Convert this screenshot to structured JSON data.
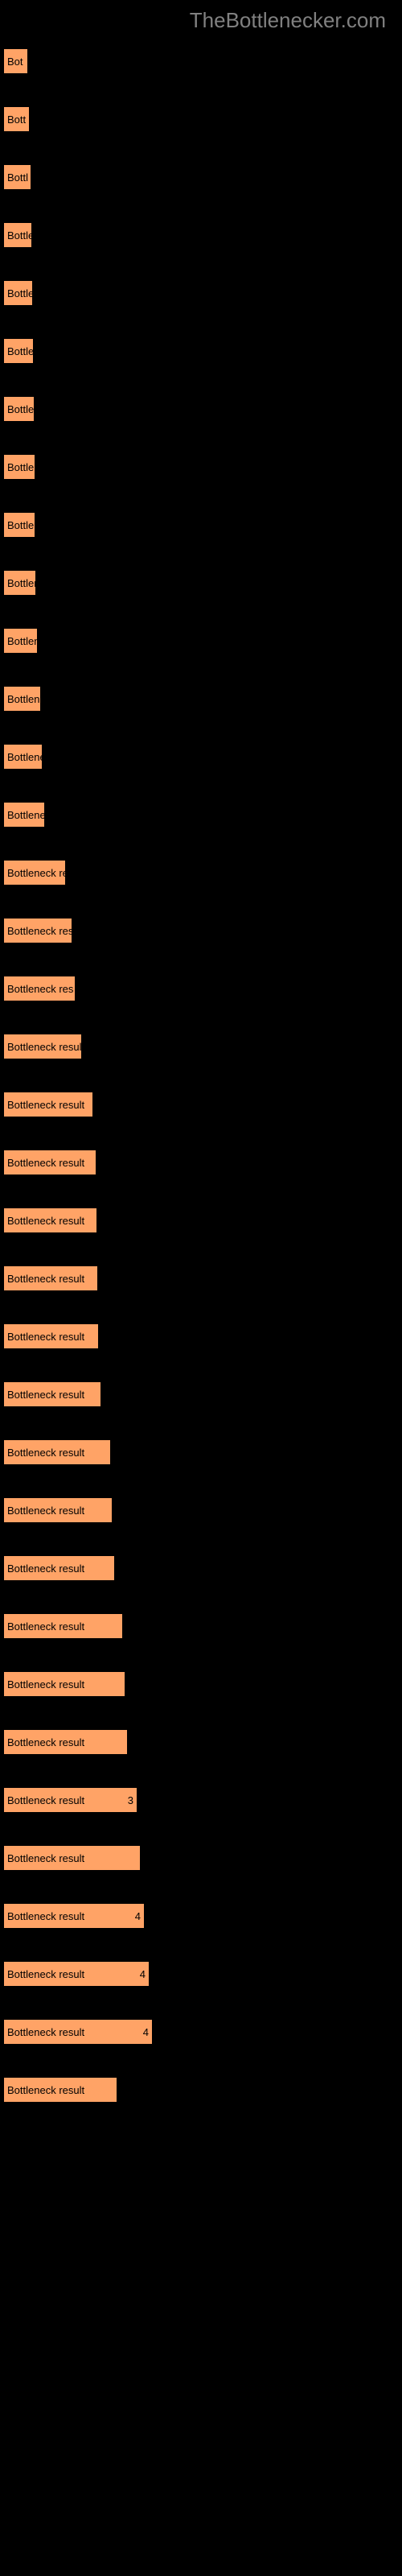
{
  "header": {
    "title": "TheBottlenecker.com"
  },
  "chart": {
    "bar_color": "#ffa366",
    "background_color": "#000000",
    "label_color": "#000000",
    "header_color": "#808080",
    "max_width": 490,
    "rows": [
      {
        "label": "",
        "text": "Bot",
        "width": 29
      },
      {
        "label": "",
        "text": "Bott",
        "width": 31
      },
      {
        "label": "",
        "text": "Bottl",
        "width": 33
      },
      {
        "label": "",
        "text": "Bottle",
        "width": 34
      },
      {
        "label": "",
        "text": "Bottle",
        "width": 35
      },
      {
        "label": "",
        "text": "Bottle",
        "width": 36
      },
      {
        "label": "",
        "text": "Bottle",
        "width": 37
      },
      {
        "label": "",
        "text": "Bottle",
        "width": 38
      },
      {
        "label": "",
        "text": "Bottle",
        "width": 38
      },
      {
        "label": "",
        "text": "Bottlen",
        "width": 39
      },
      {
        "label": "",
        "text": "Bottlen",
        "width": 41
      },
      {
        "label": "",
        "text": "Bottlene",
        "width": 45
      },
      {
        "label": "",
        "text": "Bottlene",
        "width": 47
      },
      {
        "label": "",
        "text": "Bottlene",
        "width": 50
      },
      {
        "label": "",
        "text": "Bottleneck re",
        "width": 76
      },
      {
        "label": "",
        "text": "Bottleneck result",
        "width": 84
      },
      {
        "label": "",
        "text": "Bottleneck res",
        "width": 88
      },
      {
        "label": "",
        "text": "Bottleneck result",
        "width": 96
      },
      {
        "label": "",
        "text": "Bottleneck result",
        "width": 110
      },
      {
        "label": "",
        "text": "Bottleneck result",
        "width": 114
      },
      {
        "label": "",
        "text": "Bottleneck result",
        "width": 115
      },
      {
        "label": "",
        "text": "Bottleneck result",
        "width": 116
      },
      {
        "label": "",
        "text": "Bottleneck result",
        "width": 117
      },
      {
        "label": "",
        "text": "Bottleneck result",
        "width": 120
      },
      {
        "label": "",
        "text": "Bottleneck result",
        "width": 132
      },
      {
        "label": "",
        "text": "Bottleneck result",
        "width": 134
      },
      {
        "label": "",
        "text": "Bottleneck result",
        "width": 137
      },
      {
        "label": "",
        "text": "Bottleneck result",
        "width": 147
      },
      {
        "label": "",
        "text": "Bottleneck result",
        "width": 150
      },
      {
        "label": "",
        "text": "Bottleneck result",
        "width": 153
      },
      {
        "label": "",
        "text": "Bottleneck result",
        "width": 165,
        "value": "3"
      },
      {
        "label": "",
        "text": "Bottleneck result",
        "width": 169
      },
      {
        "label": "",
        "text": "Bottleneck result",
        "width": 174,
        "value": "4"
      },
      {
        "label": "",
        "text": "Bottleneck result",
        "width": 180,
        "value": "4"
      },
      {
        "label": "",
        "text": "Bottleneck result",
        "width": 184,
        "value": "4"
      },
      {
        "label": "",
        "text": "Bottleneck result",
        "width": 140
      }
    ]
  }
}
